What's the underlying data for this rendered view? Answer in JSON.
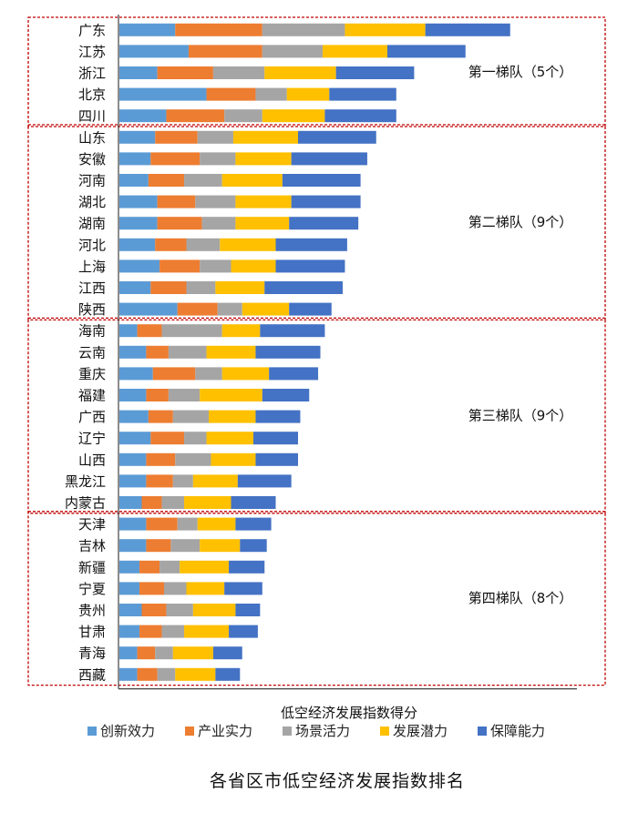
{
  "chart_data": {
    "type": "bar",
    "orientation": "horizontal",
    "stacked": true,
    "title": "",
    "xlabel": "低空经济发展指数得分",
    "ylabel": "",
    "caption": "各省区市低空经济发展指数排名",
    "legend_position": "bottom",
    "grid": false,
    "xlim": [
      0,
      100
    ],
    "categories": [
      "广东",
      "江苏",
      "浙江",
      "北京",
      "四川",
      "山东",
      "安徽",
      "河南",
      "湖北",
      "湖南",
      "河北",
      "上海",
      "江西",
      "陕西",
      "海南",
      "云南",
      "重庆",
      "福建",
      "广西",
      "辽宁",
      "山西",
      "黑龙江",
      "内蒙古",
      "天津",
      "吉林",
      "新疆",
      "宁夏",
      "贵州",
      "甘肃",
      "青海",
      "西藏"
    ],
    "series": [
      {
        "name": "创新效力",
        "color": "#5B9BD5",
        "values": [
          12.5,
          15.5,
          8.5,
          19.5,
          10.5,
          8.0,
          7.0,
          6.5,
          8.5,
          8.5,
          8.0,
          9.0,
          7.0,
          13.0,
          4.0,
          6.0,
          7.5,
          6.0,
          6.5,
          7.0,
          6.0,
          6.0,
          5.0,
          6.0,
          6.0,
          4.5,
          4.5,
          5.0,
          4.5,
          4.0,
          4.0
        ]
      },
      {
        "name": "产业实力",
        "color": "#ED7D31",
        "values": [
          19.5,
          16.5,
          12.5,
          11.0,
          13.0,
          9.5,
          11.0,
          8.0,
          8.5,
          10.0,
          7.0,
          9.0,
          8.0,
          9.0,
          5.5,
          5.0,
          9.5,
          5.0,
          5.5,
          7.5,
          6.5,
          6.0,
          4.5,
          7.0,
          5.5,
          4.5,
          5.5,
          5.5,
          5.0,
          4.0,
          4.5
        ]
      },
      {
        "name": "场景活力",
        "color": "#A5A5A5",
        "values": [
          18.5,
          13.5,
          11.5,
          7.0,
          8.5,
          8.0,
          8.0,
          8.5,
          9.0,
          7.5,
          7.5,
          7.0,
          6.5,
          5.5,
          13.5,
          8.5,
          6.0,
          7.0,
          8.0,
          5.0,
          8.0,
          4.5,
          5.0,
          4.5,
          6.5,
          4.5,
          5.0,
          6.0,
          5.0,
          4.0,
          4.0
        ]
      },
      {
        "name": "发展潜力",
        "color": "#FFC000",
        "values": [
          18.0,
          14.5,
          16.0,
          9.5,
          14.0,
          14.5,
          12.5,
          13.5,
          12.5,
          12.0,
          12.5,
          10.0,
          11.0,
          10.5,
          8.5,
          11.0,
          10.5,
          14.0,
          10.5,
          10.5,
          10.0,
          10.0,
          10.5,
          8.5,
          9.0,
          11.0,
          8.5,
          9.5,
          10.0,
          9.0,
          9.0
        ]
      },
      {
        "name": "保障能力",
        "color": "#4472C4",
        "values": [
          19.0,
          17.5,
          17.5,
          15.0,
          16.0,
          17.5,
          17.0,
          17.5,
          15.5,
          15.5,
          16.0,
          15.5,
          17.5,
          9.5,
          14.5,
          14.5,
          11.0,
          10.5,
          10.0,
          10.0,
          9.5,
          12.0,
          10.0,
          8.0,
          6.0,
          8.0,
          8.5,
          5.5,
          6.5,
          6.5,
          5.5
        ]
      }
    ],
    "tiers": [
      {
        "label": "第一梯队（5个）",
        "start": 0,
        "count": 5
      },
      {
        "label": "第二梯队（9个）",
        "start": 5,
        "count": 9
      },
      {
        "label": "第三梯队（9个）",
        "start": 14,
        "count": 9
      },
      {
        "label": "第四梯队（8个）",
        "start": 23,
        "count": 8
      }
    ]
  }
}
